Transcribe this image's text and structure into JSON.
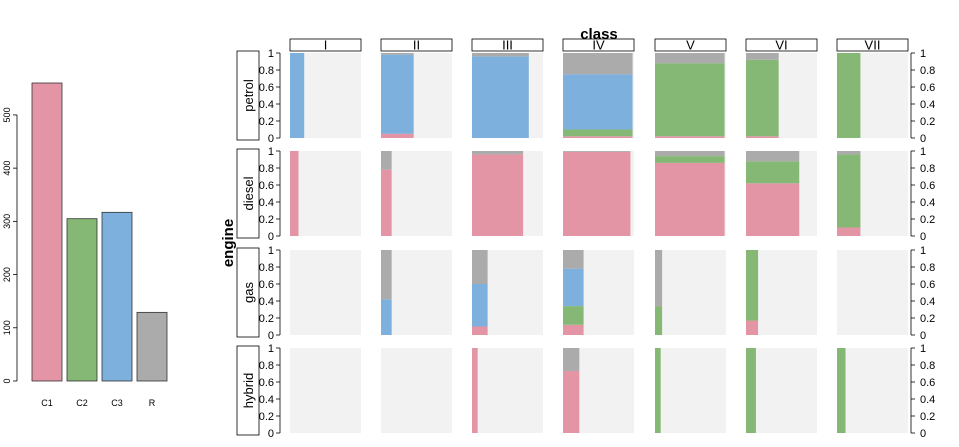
{
  "colors": {
    "C1": "#E495A5",
    "C2": "#86B875",
    "C3": "#7DB0DD",
    "R": "#ABABAB",
    "panel_bg": "#F2F2F2"
  },
  "chart_data": [
    {
      "type": "bar",
      "categories": [
        "C1",
        "C2",
        "C3",
        "R"
      ],
      "values": [
        560,
        305,
        317,
        129
      ],
      "ylim": [
        0,
        560
      ],
      "yticks": [
        "0",
        "100",
        "200",
        "300",
        "400",
        "500"
      ]
    },
    {
      "type": "bar",
      "x_title": "class",
      "y_title": "engine",
      "columns": [
        "I",
        "II",
        "III",
        "IV",
        "V",
        "VI",
        "VII"
      ],
      "rows": [
        "petrol",
        "diesel",
        "gas",
        "hybrid"
      ],
      "stack_order": [
        "C1",
        "C2",
        "C3",
        "R"
      ],
      "ylim": [
        0,
        1
      ],
      "yticks": [
        "0",
        "0.2",
        "0.4",
        "0.6",
        "0.8",
        "1"
      ],
      "cells": [
        [
          {
            "width": 0.2,
            "props": [
              0,
              0,
              1.0,
              0
            ]
          },
          {
            "width": 0.46,
            "props": [
              0.05,
              0,
              0.93,
              0.02
            ]
          },
          {
            "width": 0.8,
            "props": [
              0,
              0,
              0.96,
              0.04
            ]
          },
          {
            "width": 0.98,
            "props": [
              0.02,
              0.08,
              0.65,
              0.25
            ]
          },
          {
            "width": 0.98,
            "props": [
              0.02,
              0.86,
              0,
              0.12
            ]
          },
          {
            "width": 0.46,
            "props": [
              0.02,
              0.9,
              0,
              0.08
            ]
          },
          {
            "width": 0.33,
            "props": [
              0,
              1.0,
              0,
              0
            ]
          }
        ],
        [
          {
            "width": 0.12,
            "props": [
              1.0,
              0,
              0,
              0
            ]
          },
          {
            "width": 0.15,
            "props": [
              0.78,
              0,
              0,
              0.22
            ]
          },
          {
            "width": 0.72,
            "props": [
              0.96,
              0,
              0,
              0.04
            ]
          },
          {
            "width": 0.95,
            "props": [
              0.99,
              0,
              0,
              0.01
            ]
          },
          {
            "width": 0.98,
            "props": [
              0.86,
              0.08,
              0,
              0.06
            ]
          },
          {
            "width": 0.75,
            "props": [
              0.62,
              0.26,
              0,
              0.12
            ]
          },
          {
            "width": 0.33,
            "props": [
              0.1,
              0.86,
              0,
              0.04
            ]
          }
        ],
        [
          {
            "width": 0,
            "props": [
              0,
              0,
              0,
              0
            ]
          },
          {
            "width": 0.15,
            "props": [
              0,
              0,
              0.42,
              0.58
            ]
          },
          {
            "width": 0.22,
            "props": [
              0.1,
              0,
              0.5,
              0.4
            ]
          },
          {
            "width": 0.29,
            "props": [
              0.12,
              0.22,
              0.44,
              0.22
            ]
          },
          {
            "width": 0.1,
            "props": [
              0,
              0.34,
              0,
              0.66
            ]
          },
          {
            "width": 0.17,
            "props": [
              0.17,
              0.83,
              0,
              0
            ]
          },
          {
            "width": 0,
            "props": [
              0,
              0,
              0,
              0
            ]
          }
        ],
        [
          {
            "width": 0,
            "props": [
              0,
              0,
              0,
              0
            ]
          },
          {
            "width": 0,
            "props": [
              0,
              0,
              0,
              0
            ]
          },
          {
            "width": 0.08,
            "props": [
              1.0,
              0,
              0,
              0
            ]
          },
          {
            "width": 0.23,
            "props": [
              0.73,
              0,
              0,
              0.27
            ]
          },
          {
            "width": 0.08,
            "props": [
              0,
              1.0,
              0,
              0
            ]
          },
          {
            "width": 0.14,
            "props": [
              0,
              1.0,
              0,
              0
            ]
          },
          {
            "width": 0.12,
            "props": [
              0,
              1.0,
              0,
              0
            ]
          }
        ]
      ]
    }
  ]
}
